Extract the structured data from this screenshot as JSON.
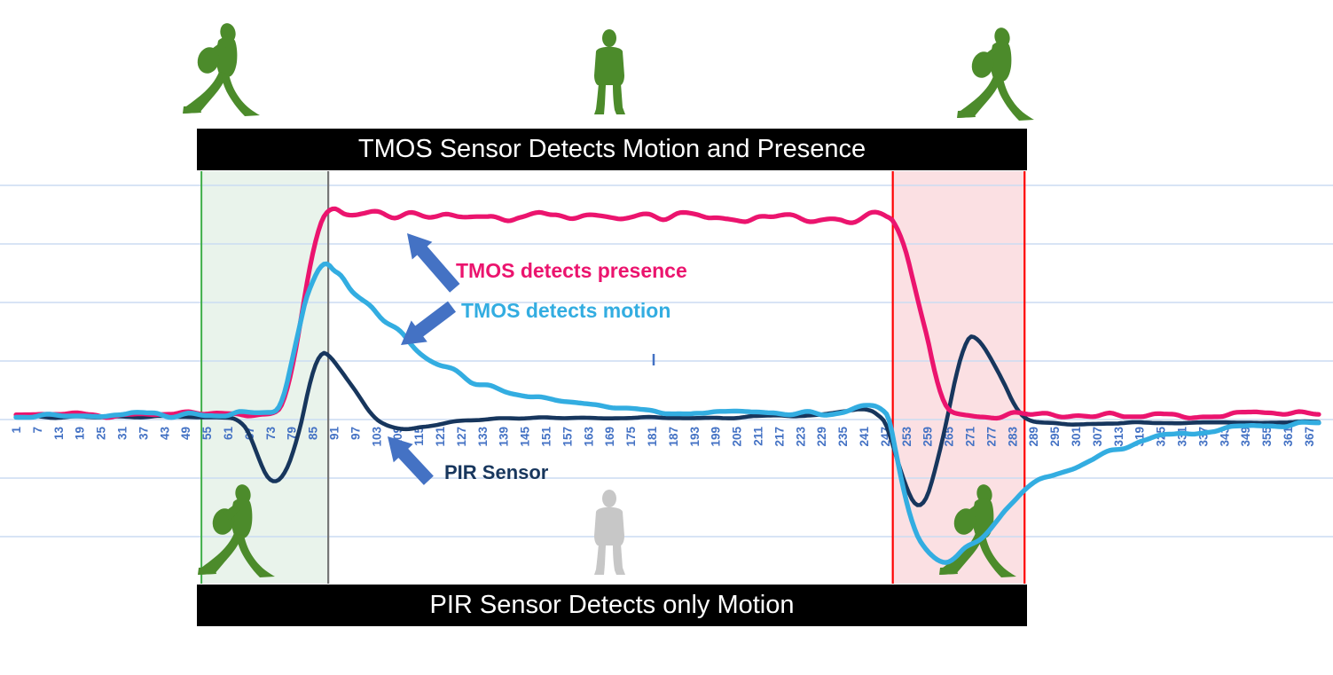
{
  "banners": {
    "top": "TMOS Sensor Detects Motion and Presence",
    "bottom": "PIR Sensor Detects only Motion"
  },
  "annotations": [
    {
      "id": "presence",
      "label": "TMOS detects presence",
      "color": "#EB146E"
    },
    {
      "id": "motion",
      "label": "TMOS detects motion",
      "color": "#33ADE1"
    },
    {
      "id": "pir",
      "label": "PIR Sensor",
      "color": "#17365D"
    }
  ],
  "icons": {
    "top": [
      {
        "type": "walking-person",
        "color": "green"
      },
      {
        "type": "standing-person",
        "color": "green"
      },
      {
        "type": "walking-person",
        "color": "green"
      }
    ],
    "bottom": [
      {
        "type": "walking-person",
        "color": "green"
      },
      {
        "type": "standing-person",
        "color": "gray"
      },
      {
        "type": "walking-person",
        "color": "green"
      }
    ]
  },
  "colors": {
    "presence_line": "#EB146E",
    "motion_line": "#33ADE1",
    "pir_line": "#17365D",
    "arrow": "#4472C4",
    "tick_label": "#4472C4",
    "gridline": "#CBDCF2",
    "green_person": "#4C8B2B",
    "gray_person": "#C7C7C7",
    "region_entry_fill": "#E9F3EB",
    "region_entry_border": "#3FAE49",
    "region_divider_gray": "#757575",
    "region_exit_fill": "#FBE0E3",
    "region_exit_border": "#FE0000",
    "banner_bg": "#000000",
    "banner_text": "#FFFFFF"
  },
  "chart_data": {
    "type": "line",
    "title": "",
    "xlabel": "",
    "ylabel": "",
    "legend": "none (labels drawn as in-chart annotations with arrows)",
    "grid": "horizontal only",
    "x_axis": {
      "first": 1,
      "step": 6,
      "last": 367,
      "tick_labels": [
        1,
        7,
        13,
        19,
        25,
        31,
        37,
        43,
        49,
        55,
        61,
        67,
        73,
        79,
        85,
        91,
        97,
        103,
        109,
        115,
        121,
        127,
        133,
        139,
        145,
        151,
        157,
        163,
        169,
        175,
        181,
        187,
        193,
        199,
        205,
        211,
        217,
        223,
        229,
        235,
        241,
        247,
        253,
        259,
        265,
        271,
        277,
        283,
        289,
        295,
        301,
        307,
        313,
        319,
        325,
        331,
        337,
        343,
        349,
        355,
        361,
        367
      ]
    },
    "y_axis": {
      "visible": false,
      "unit_note": "1 unit = one horizontal gridline spacing; 0 = sensor resting baseline"
    },
    "gridline_values": [
      4,
      3,
      2,
      1,
      0,
      -1,
      -2
    ],
    "regions": [
      {
        "id": "entry",
        "label": "person enters (walking)",
        "x_start": 53.5,
        "x_end": 89.4,
        "fill": "region_entry_fill",
        "left_border": "region_entry_border",
        "right_border": "region_divider_gray"
      },
      {
        "id": "exit",
        "label": "person leaves (walking)",
        "x_start": 249.2,
        "x_end": 286.5,
        "fill": "region_exit_fill",
        "left_border": "region_exit_border",
        "right_border": "region_exit_border"
      }
    ],
    "series": [
      {
        "name": "TMOS detects presence",
        "color_key": "presence_line",
        "stroke_width": 5.2,
        "noise": {
          "amp": 0.055,
          "wavelength": 4.5,
          "seed": 11
        },
        "points": [
          [
            1,
            0.08
          ],
          [
            30,
            0.08
          ],
          [
            55,
            0.1
          ],
          [
            64,
            0.08
          ],
          [
            70,
            0.12
          ],
          [
            74,
            0.15
          ],
          [
            76,
            0.25
          ],
          [
            78,
            0.6
          ],
          [
            80,
            1.15
          ],
          [
            82,
            1.85
          ],
          [
            84,
            2.55
          ],
          [
            86,
            3.1
          ],
          [
            88,
            3.45
          ],
          [
            91,
            3.6
          ],
          [
            94,
            3.55
          ],
          [
            98,
            3.5
          ],
          [
            103,
            3.55
          ],
          [
            108,
            3.45
          ],
          [
            113,
            3.5
          ],
          [
            118,
            3.42
          ],
          [
            124,
            3.5
          ],
          [
            130,
            3.45
          ],
          [
            136,
            3.5
          ],
          [
            142,
            3.42
          ],
          [
            148,
            3.48
          ],
          [
            154,
            3.52
          ],
          [
            160,
            3.45
          ],
          [
            166,
            3.5
          ],
          [
            172,
            3.42
          ],
          [
            178,
            3.48
          ],
          [
            184,
            3.45
          ],
          [
            190,
            3.5
          ],
          [
            196,
            3.45
          ],
          [
            202,
            3.48
          ],
          [
            208,
            3.42
          ],
          [
            214,
            3.45
          ],
          [
            220,
            3.5
          ],
          [
            226,
            3.4
          ],
          [
            231,
            3.42
          ],
          [
            236,
            3.38
          ],
          [
            240,
            3.45
          ],
          [
            243,
            3.52
          ],
          [
            246,
            3.55
          ],
          [
            248,
            3.5
          ],
          [
            249,
            3.45
          ],
          [
            251,
            3.2
          ],
          [
            253,
            2.85
          ],
          [
            255,
            2.35
          ],
          [
            257,
            1.85
          ],
          [
            259,
            1.35
          ],
          [
            261,
            0.78
          ],
          [
            263,
            0.38
          ],
          [
            265,
            0.18
          ],
          [
            268,
            0.1
          ],
          [
            275,
            0.06
          ],
          [
            285,
            0.1
          ],
          [
            300,
            0.06
          ],
          [
            320,
            0.09
          ],
          [
            340,
            0.06
          ],
          [
            355,
            0.1
          ],
          [
            370,
            0.08
          ]
        ]
      },
      {
        "name": "TMOS detects motion",
        "color_key": "motion_line",
        "stroke_width": 5.4,
        "noise": {
          "amp": 0.05,
          "wavelength": 5,
          "seed": 23
        },
        "points": [
          [
            1,
            0.08
          ],
          [
            40,
            0.08
          ],
          [
            62,
            0.1
          ],
          [
            68,
            0.08
          ],
          [
            72,
            0.1
          ],
          [
            75,
            0.18
          ],
          [
            77,
            0.45
          ],
          [
            79,
            0.95
          ],
          [
            81,
            1.5
          ],
          [
            83,
            2.05
          ],
          [
            85,
            2.4
          ],
          [
            87,
            2.62
          ],
          [
            89,
            2.67
          ],
          [
            91,
            2.55
          ],
          [
            93,
            2.45
          ],
          [
            96,
            2.18
          ],
          [
            99,
            2.0
          ],
          [
            102,
            1.88
          ],
          [
            105,
            1.72
          ],
          [
            109,
            1.52
          ],
          [
            113,
            1.28
          ],
          [
            117,
            1.08
          ],
          [
            121,
            0.95
          ],
          [
            126,
            0.8
          ],
          [
            131,
            0.63
          ],
          [
            136,
            0.55
          ],
          [
            142,
            0.44
          ],
          [
            148,
            0.36
          ],
          [
            154,
            0.3
          ],
          [
            161,
            0.24
          ],
          [
            169,
            0.19
          ],
          [
            178,
            0.15
          ],
          [
            188,
            0.12
          ],
          [
            200,
            0.1
          ],
          [
            213,
            0.1
          ],
          [
            226,
            0.1
          ],
          [
            234,
            0.12
          ],
          [
            240,
            0.2
          ],
          [
            244,
            0.26
          ],
          [
            246,
            0.2
          ],
          [
            248,
            0.02
          ],
          [
            250,
            -0.55
          ],
          [
            252,
            -1.15
          ],
          [
            254,
            -1.65
          ],
          [
            256,
            -2.0
          ],
          [
            258,
            -2.2
          ],
          [
            261,
            -2.38
          ],
          [
            264,
            -2.4
          ],
          [
            267,
            -2.32
          ],
          [
            270,
            -2.18
          ],
          [
            274,
            -2.05
          ],
          [
            278,
            -1.8
          ],
          [
            282,
            -1.5
          ],
          [
            286,
            -1.22
          ],
          [
            290,
            -1.02
          ],
          [
            295,
            -0.9
          ],
          [
            301,
            -0.78
          ],
          [
            308,
            -0.6
          ],
          [
            315,
            -0.45
          ],
          [
            323,
            -0.33
          ],
          [
            332,
            -0.24
          ],
          [
            342,
            -0.16
          ],
          [
            352,
            -0.1
          ],
          [
            361,
            -0.08
          ],
          [
            370,
            -0.08
          ]
        ]
      },
      {
        "name": "PIR Sensor",
        "color_key": "pir_line",
        "stroke_width": 4.6,
        "noise": {
          "amp": 0.018,
          "wavelength": 6,
          "seed": 37
        },
        "points": [
          [
            1,
            0.04
          ],
          [
            30,
            0.05
          ],
          [
            50,
            0.04
          ],
          [
            60,
            0.03
          ],
          [
            63,
            0.0
          ],
          [
            66,
            -0.15
          ],
          [
            68,
            -0.4
          ],
          [
            70,
            -0.7
          ],
          [
            72,
            -0.95
          ],
          [
            74,
            -1.05
          ],
          [
            76,
            -1.0
          ],
          [
            78,
            -0.8
          ],
          [
            80,
            -0.45
          ],
          [
            82,
            0.0
          ],
          [
            84,
            0.55
          ],
          [
            86,
            0.95
          ],
          [
            88,
            1.12
          ],
          [
            90,
            1.05
          ],
          [
            92,
            0.9
          ],
          [
            95,
            0.65
          ],
          [
            98,
            0.4
          ],
          [
            101,
            0.15
          ],
          [
            104,
            -0.03
          ],
          [
            108,
            -0.14
          ],
          [
            112,
            -0.17
          ],
          [
            116,
            -0.13
          ],
          [
            120,
            -0.08
          ],
          [
            125,
            -0.03
          ],
          [
            131,
            0.0
          ],
          [
            140,
            0.02
          ],
          [
            155,
            0.03
          ],
          [
            170,
            0.02
          ],
          [
            185,
            0.03
          ],
          [
            200,
            0.03
          ],
          [
            212,
            0.05
          ],
          [
            222,
            0.07
          ],
          [
            230,
            0.1
          ],
          [
            236,
            0.14
          ],
          [
            240,
            0.17
          ],
          [
            243,
            0.15
          ],
          [
            245,
            0.08
          ],
          [
            247,
            -0.05
          ],
          [
            249,
            -0.4
          ],
          [
            251,
            -0.8
          ],
          [
            253,
            -1.15
          ],
          [
            255,
            -1.4
          ],
          [
            257,
            -1.45
          ],
          [
            259,
            -1.28
          ],
          [
            261,
            -0.88
          ],
          [
            263,
            -0.4
          ],
          [
            265,
            0.15
          ],
          [
            267,
            0.72
          ],
          [
            269,
            1.15
          ],
          [
            271,
            1.4
          ],
          [
            273,
            1.38
          ],
          [
            275,
            1.25
          ],
          [
            277,
            1.05
          ],
          [
            279,
            0.82
          ],
          [
            281,
            0.58
          ],
          [
            283,
            0.32
          ],
          [
            285,
            0.12
          ],
          [
            287,
            0.0
          ],
          [
            290,
            -0.06
          ],
          [
            300,
            -0.07
          ],
          [
            315,
            -0.06
          ],
          [
            335,
            -0.06
          ],
          [
            355,
            -0.05
          ],
          [
            370,
            -0.05
          ]
        ]
      }
    ]
  }
}
